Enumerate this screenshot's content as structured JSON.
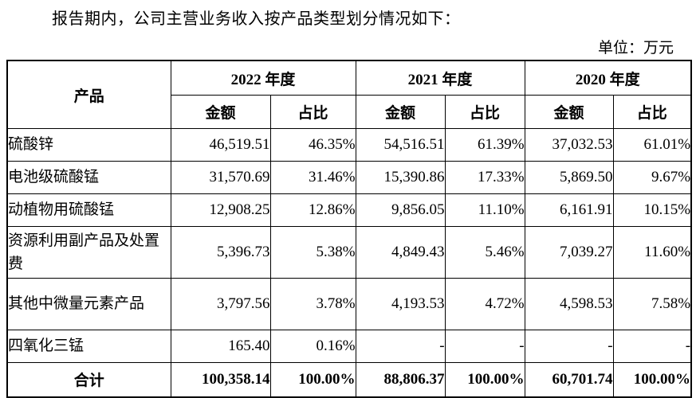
{
  "intro_text": "报告期内，公司主营业务收入按产品类型划分情况如下：",
  "unit_label": "单位：万元",
  "table": {
    "product_header": "产品",
    "year_headers": [
      "2022 年度",
      "2021 年度",
      "2020 年度"
    ],
    "sub_headers": {
      "amount": "金额",
      "ratio": "占比"
    },
    "rows": [
      {
        "product": "硫酸锌",
        "values": [
          "46,519.51",
          "46.35%",
          "54,516.51",
          "61.39%",
          "37,032.53",
          "61.01%"
        ]
      },
      {
        "product": "电池级硫酸锰",
        "values": [
          "31,570.69",
          "31.46%",
          "15,390.86",
          "17.33%",
          "5,869.50",
          "9.67%"
        ]
      },
      {
        "product": "动植物用硫酸锰",
        "values": [
          "12,908.25",
          "12.86%",
          "9,856.05",
          "11.10%",
          "6,161.91",
          "10.15%"
        ]
      },
      {
        "product": "资源利用副产品及处置费",
        "values": [
          "5,396.73",
          "5.38%",
          "4,849.43",
          "5.46%",
          "7,039.27",
          "11.60%"
        ]
      },
      {
        "product": "其他中微量元素产品",
        "values": [
          "3,797.56",
          "3.78%",
          "4,193.53",
          "4.72%",
          "4,598.53",
          "7.58%"
        ]
      },
      {
        "product": "四氧化三锰",
        "values": [
          "165.40",
          "0.16%",
          "-",
          "-",
          "-",
          "-"
        ]
      }
    ],
    "total_row": {
      "product": "合计",
      "values": [
        "100,358.14",
        "100.00%",
        "88,806.37",
        "100.00%",
        "60,701.74",
        "100.00%"
      ]
    }
  }
}
